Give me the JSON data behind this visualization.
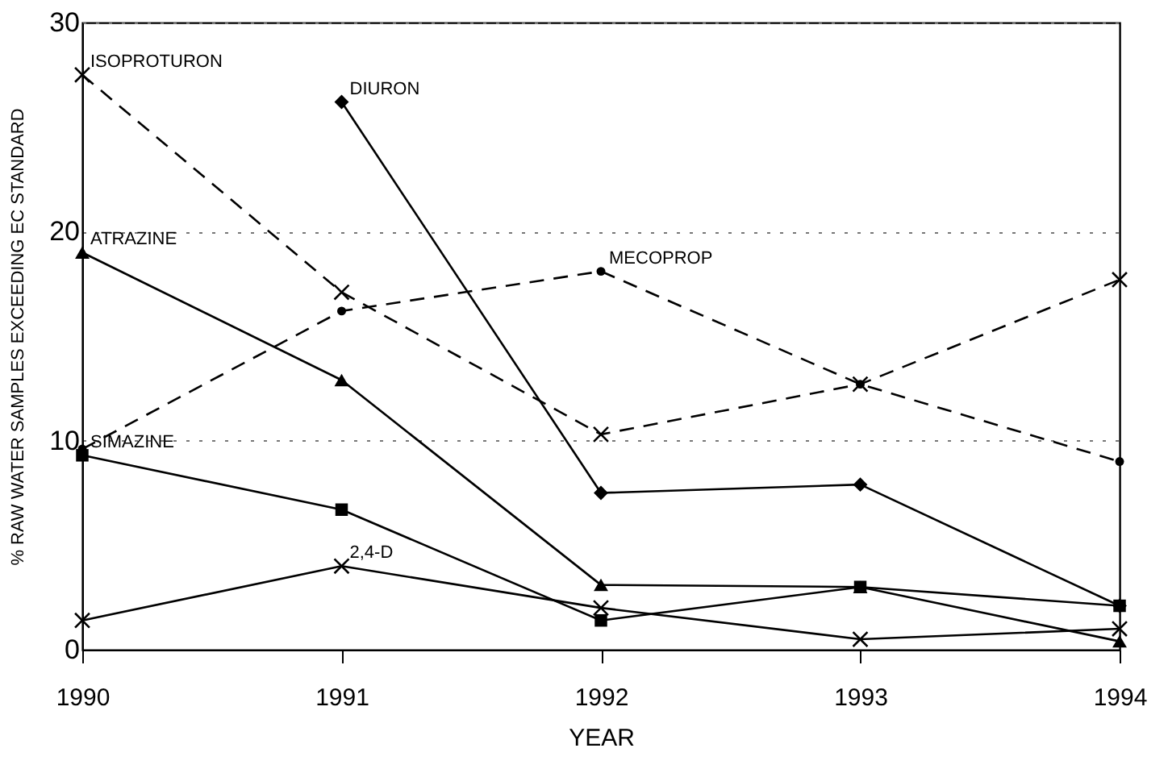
{
  "chart_data": {
    "type": "line",
    "xlabel": "YEAR",
    "ylabel": "% RAW WATER SAMPLES EXCEEDING EC STANDARD",
    "x": [
      1990,
      1991,
      1992,
      1993,
      1994
    ],
    "xlim": [
      1990,
      1994
    ],
    "xticks": [
      1990,
      1991,
      1992,
      1993,
      1994
    ],
    "ylim": [
      0,
      30
    ],
    "yticks": [
      0,
      10,
      20,
      30
    ],
    "grid": "y",
    "series": [
      {
        "name": "ISOPROTURON",
        "color": "#000000",
        "marker": "cross",
        "line_style": "dashed",
        "values": [
          27.5,
          17.1,
          10.3,
          12.7,
          17.7
        ]
      },
      {
        "name": "DIURON",
        "color": "#000000",
        "marker": "diamond",
        "line_style": "solid",
        "values": [
          null,
          26.2,
          7.5,
          7.9,
          2.1
        ]
      },
      {
        "name": "ATRAZINE",
        "color": "#000000",
        "marker": "triangle",
        "line_style": "solid",
        "values": [
          19.0,
          12.9,
          3.1,
          3.0,
          0.4
        ]
      },
      {
        "name": "MECOPROP",
        "color": "#000000",
        "marker": "circle",
        "line_style": "dashed",
        "values": [
          9.6,
          16.2,
          18.1,
          12.7,
          9.0
        ]
      },
      {
        "name": "SIMAZINE",
        "color": "#000000",
        "marker": "square",
        "line_style": "solid",
        "values": [
          9.3,
          6.7,
          1.4,
          3.0,
          2.1
        ]
      },
      {
        "name": "2,4-D",
        "color": "#000000",
        "marker": "cross",
        "line_style": "solid",
        "values": [
          1.4,
          4.0,
          2.0,
          0.5,
          1.0
        ]
      }
    ]
  }
}
